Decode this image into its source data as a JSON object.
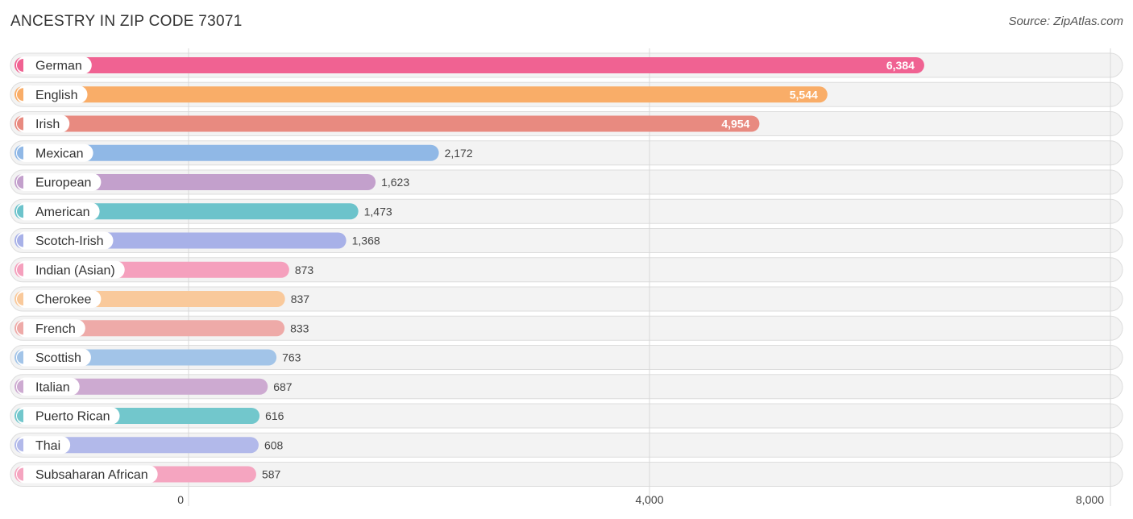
{
  "header": {
    "title": "ANCESTRY IN ZIP CODE 73071",
    "source": "Source: ZipAtlas.com"
  },
  "chart_data": {
    "type": "bar",
    "orientation": "horizontal",
    "title": "ANCESTRY IN ZIP CODE 73071",
    "xlabel": "",
    "ylabel": "",
    "xlim": [
      0,
      8000
    ],
    "ticks": [
      {
        "value": 0,
        "label": "0"
      },
      {
        "value": 4000,
        "label": "4,000"
      },
      {
        "value": 8000,
        "label": "8,000"
      }
    ],
    "categories": [
      "German",
      "English",
      "Irish",
      "Mexican",
      "European",
      "American",
      "Scotch-Irish",
      "Indian (Asian)",
      "Cherokee",
      "French",
      "Scottish",
      "Italian",
      "Puerto Rican",
      "Thai",
      "Subsaharan African"
    ],
    "values": [
      6384,
      5544,
      4954,
      2172,
      1623,
      1473,
      1368,
      873,
      837,
      833,
      763,
      687,
      616,
      608,
      587
    ],
    "value_labels": [
      "6,384",
      "5,544",
      "4,954",
      "2,172",
      "1,623",
      "1,473",
      "1,368",
      "873",
      "837",
      "833",
      "763",
      "687",
      "616",
      "608",
      "587"
    ],
    "colors": [
      "#f06292",
      "#f9ad68",
      "#e88a80",
      "#90b8e6",
      "#c3a0cc",
      "#6cc3cb",
      "#a8b1e8",
      "#f5a0bd",
      "#f9c99b",
      "#eeaaa8",
      "#a2c4e8",
      "#cdaad1",
      "#72c7cc",
      "#b2b9ea",
      "#f5a5c0"
    ],
    "grid": true,
    "legend": "none"
  }
}
